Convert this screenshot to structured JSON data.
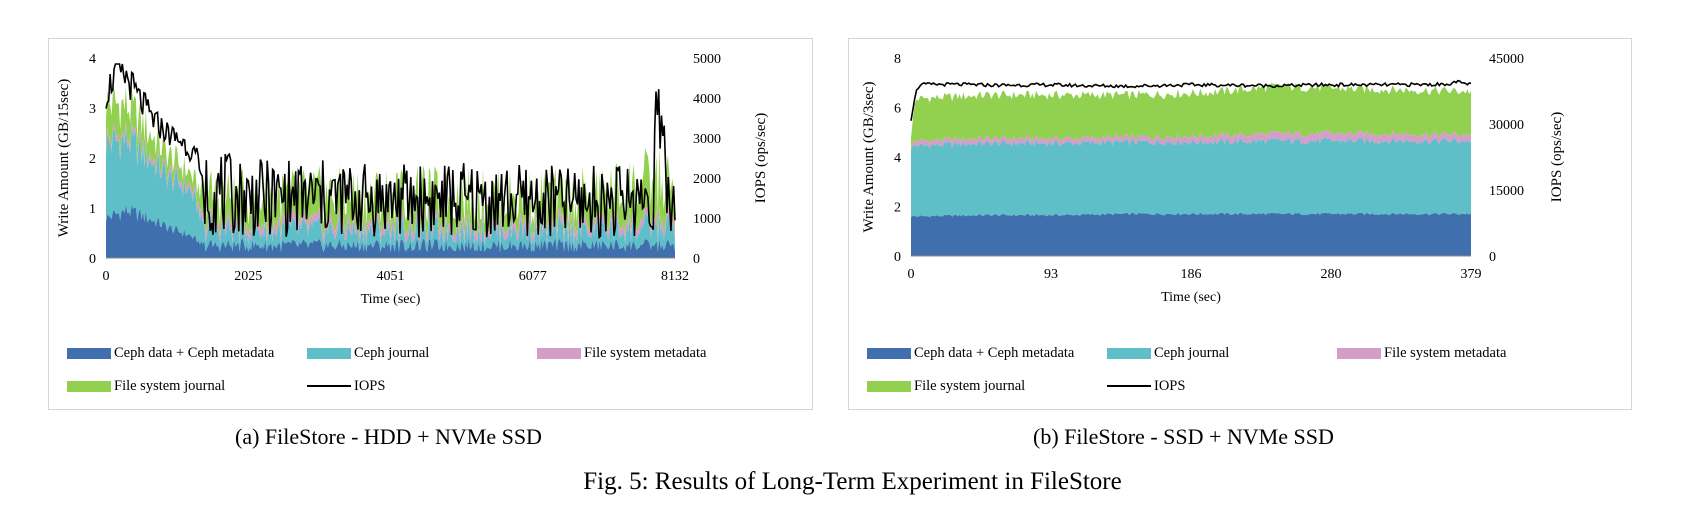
{
  "figure_caption": "Fig. 5: Results of Long-Term Experiment in FileStore",
  "colors": {
    "ceph_data": "#3f6fad",
    "ceph_journal": "#5fbfc8",
    "fs_metadata": "#d49ec8",
    "fs_journal": "#92d050",
    "iops": "#000000"
  },
  "legend": {
    "ceph_data": "Ceph data + Ceph metadata",
    "ceph_journal": "Ceph journal",
    "fs_metadata": "File system metadata",
    "fs_journal": "File system journal",
    "iops": "IOPS"
  },
  "chart_data": [
    {
      "type": "area",
      "caption": "(a) FileStore - HDD + NVMe SSD",
      "xlabel": "Time (sec)",
      "ylabel": "Write Amount (GB/15sec)",
      "y2label": "IOPS (ops/sec)",
      "xticks": [
        "0",
        "2025",
        "4051",
        "6077",
        "8132"
      ],
      "xlim": [
        0,
        8132
      ],
      "ylim": [
        0,
        4
      ],
      "yticks": [
        "0",
        "1",
        "2",
        "3",
        "4"
      ],
      "y2lim": [
        0,
        5000
      ],
      "y2ticks": [
        "0",
        "1000",
        "2000",
        "3000",
        "4000",
        "5000"
      ],
      "series": [
        {
          "name": "Ceph data + Ceph metadata",
          "x": [
            0,
            300,
            600,
            900,
            1200,
            1300,
            1400,
            2025,
            3000,
            4051,
            5000,
            6077,
            7000,
            7900,
            8132
          ],
          "values": [
            0.8,
            0.95,
            0.8,
            0.6,
            0.45,
            0.35,
            0.25,
            0.25,
            0.25,
            0.25,
            0.25,
            0.25,
            0.25,
            0.25,
            0.25
          ]
        },
        {
          "name": "Ceph journal",
          "x": [
            0,
            300,
            600,
            900,
            1200,
            1300,
            1400,
            2025,
            3000,
            4051,
            5000,
            6077,
            7000,
            7900,
            8132
          ],
          "values": [
            1.5,
            1.4,
            1.2,
            1.0,
            0.9,
            0.7,
            0.35,
            0.3,
            0.3,
            0.3,
            0.3,
            0.3,
            0.3,
            0.35,
            0.35
          ]
        },
        {
          "name": "File system metadata",
          "x": [
            0,
            300,
            600,
            900,
            1200,
            1300,
            1400,
            2025,
            3000,
            4051,
            5000,
            6077,
            7000,
            7900,
            8132
          ],
          "values": [
            0.1,
            0.1,
            0.1,
            0.1,
            0.1,
            0.1,
            0.15,
            0.15,
            0.15,
            0.15,
            0.15,
            0.15,
            0.15,
            0.15,
            0.15
          ]
        },
        {
          "name": "File system journal",
          "x": [
            0,
            300,
            600,
            900,
            1200,
            1300,
            1400,
            2025,
            3000,
            4051,
            5000,
            6077,
            7000,
            7900,
            8132
          ],
          "values": [
            0.7,
            0.6,
            0.45,
            0.35,
            0.25,
            0.3,
            0.5,
            0.5,
            0.55,
            0.55,
            0.55,
            0.5,
            0.55,
            0.8,
            0.6
          ]
        },
        {
          "name": "IOPS",
          "axis": "right",
          "x": [
            0,
            150,
            300,
            500,
            700,
            900,
            1100,
            1300,
            1400,
            2025,
            3000,
            4051,
            5000,
            6077,
            7000,
            7800,
            7900,
            8000,
            8132
          ],
          "values": [
            4100,
            4700,
            4500,
            3900,
            3400,
            3100,
            2900,
            2500,
            1700,
            1500,
            1500,
            1450,
            1450,
            1400,
            1400,
            1500,
            3800,
            1500,
            1300
          ]
        }
      ]
    },
    {
      "type": "area",
      "caption": "(b) FileStore - SSD + NVMe SSD",
      "xlabel": "Time (sec)",
      "ylabel": "Write Amount (GB/3sec)",
      "y2label": "IOPS (ops/sec)",
      "xticks": [
        "0",
        "93",
        "186",
        "280",
        "379"
      ],
      "xlim": [
        0,
        379
      ],
      "ylim": [
        0,
        8
      ],
      "yticks": [
        "0",
        "2",
        "4",
        "6",
        "8"
      ],
      "y2lim": [
        0,
        45000
      ],
      "y2ticks": [
        "0",
        "15000",
        "30000",
        "45000"
      ],
      "series": [
        {
          "name": "Ceph data + Ceph metadata",
          "x": [
            0,
            3,
            50,
            100,
            150,
            200,
            250,
            300,
            379
          ],
          "values": [
            1.6,
            1.6,
            1.65,
            1.65,
            1.7,
            1.7,
            1.7,
            1.7,
            1.7
          ]
        },
        {
          "name": "Ceph journal",
          "x": [
            0,
            3,
            50,
            100,
            150,
            200,
            250,
            300,
            379
          ],
          "values": [
            2.8,
            2.85,
            2.9,
            2.9,
            2.9,
            2.9,
            2.95,
            2.95,
            2.95
          ]
        },
        {
          "name": "File system metadata",
          "x": [
            0,
            3,
            50,
            100,
            150,
            200,
            250,
            300,
            379
          ],
          "values": [
            0.05,
            0.2,
            0.2,
            0.2,
            0.2,
            0.25,
            0.3,
            0.3,
            0.25
          ]
        },
        {
          "name": "File system journal",
          "x": [
            0,
            3,
            50,
            100,
            150,
            200,
            250,
            300,
            379
          ],
          "values": [
            0.4,
            1.7,
            1.75,
            1.75,
            1.7,
            1.75,
            1.9,
            1.8,
            1.75
          ]
        },
        {
          "name": "IOPS",
          "axis": "right",
          "x": [
            0,
            3,
            6,
            30,
            60,
            93,
            120,
            150,
            186,
            220,
            250,
            280,
            320,
            360,
            370,
            379
          ],
          "values": [
            31000,
            37000,
            39000,
            39000,
            38800,
            38900,
            38700,
            38600,
            38900,
            38800,
            38700,
            38900,
            38900,
            39000,
            39500,
            39000
          ]
        }
      ]
    }
  ]
}
